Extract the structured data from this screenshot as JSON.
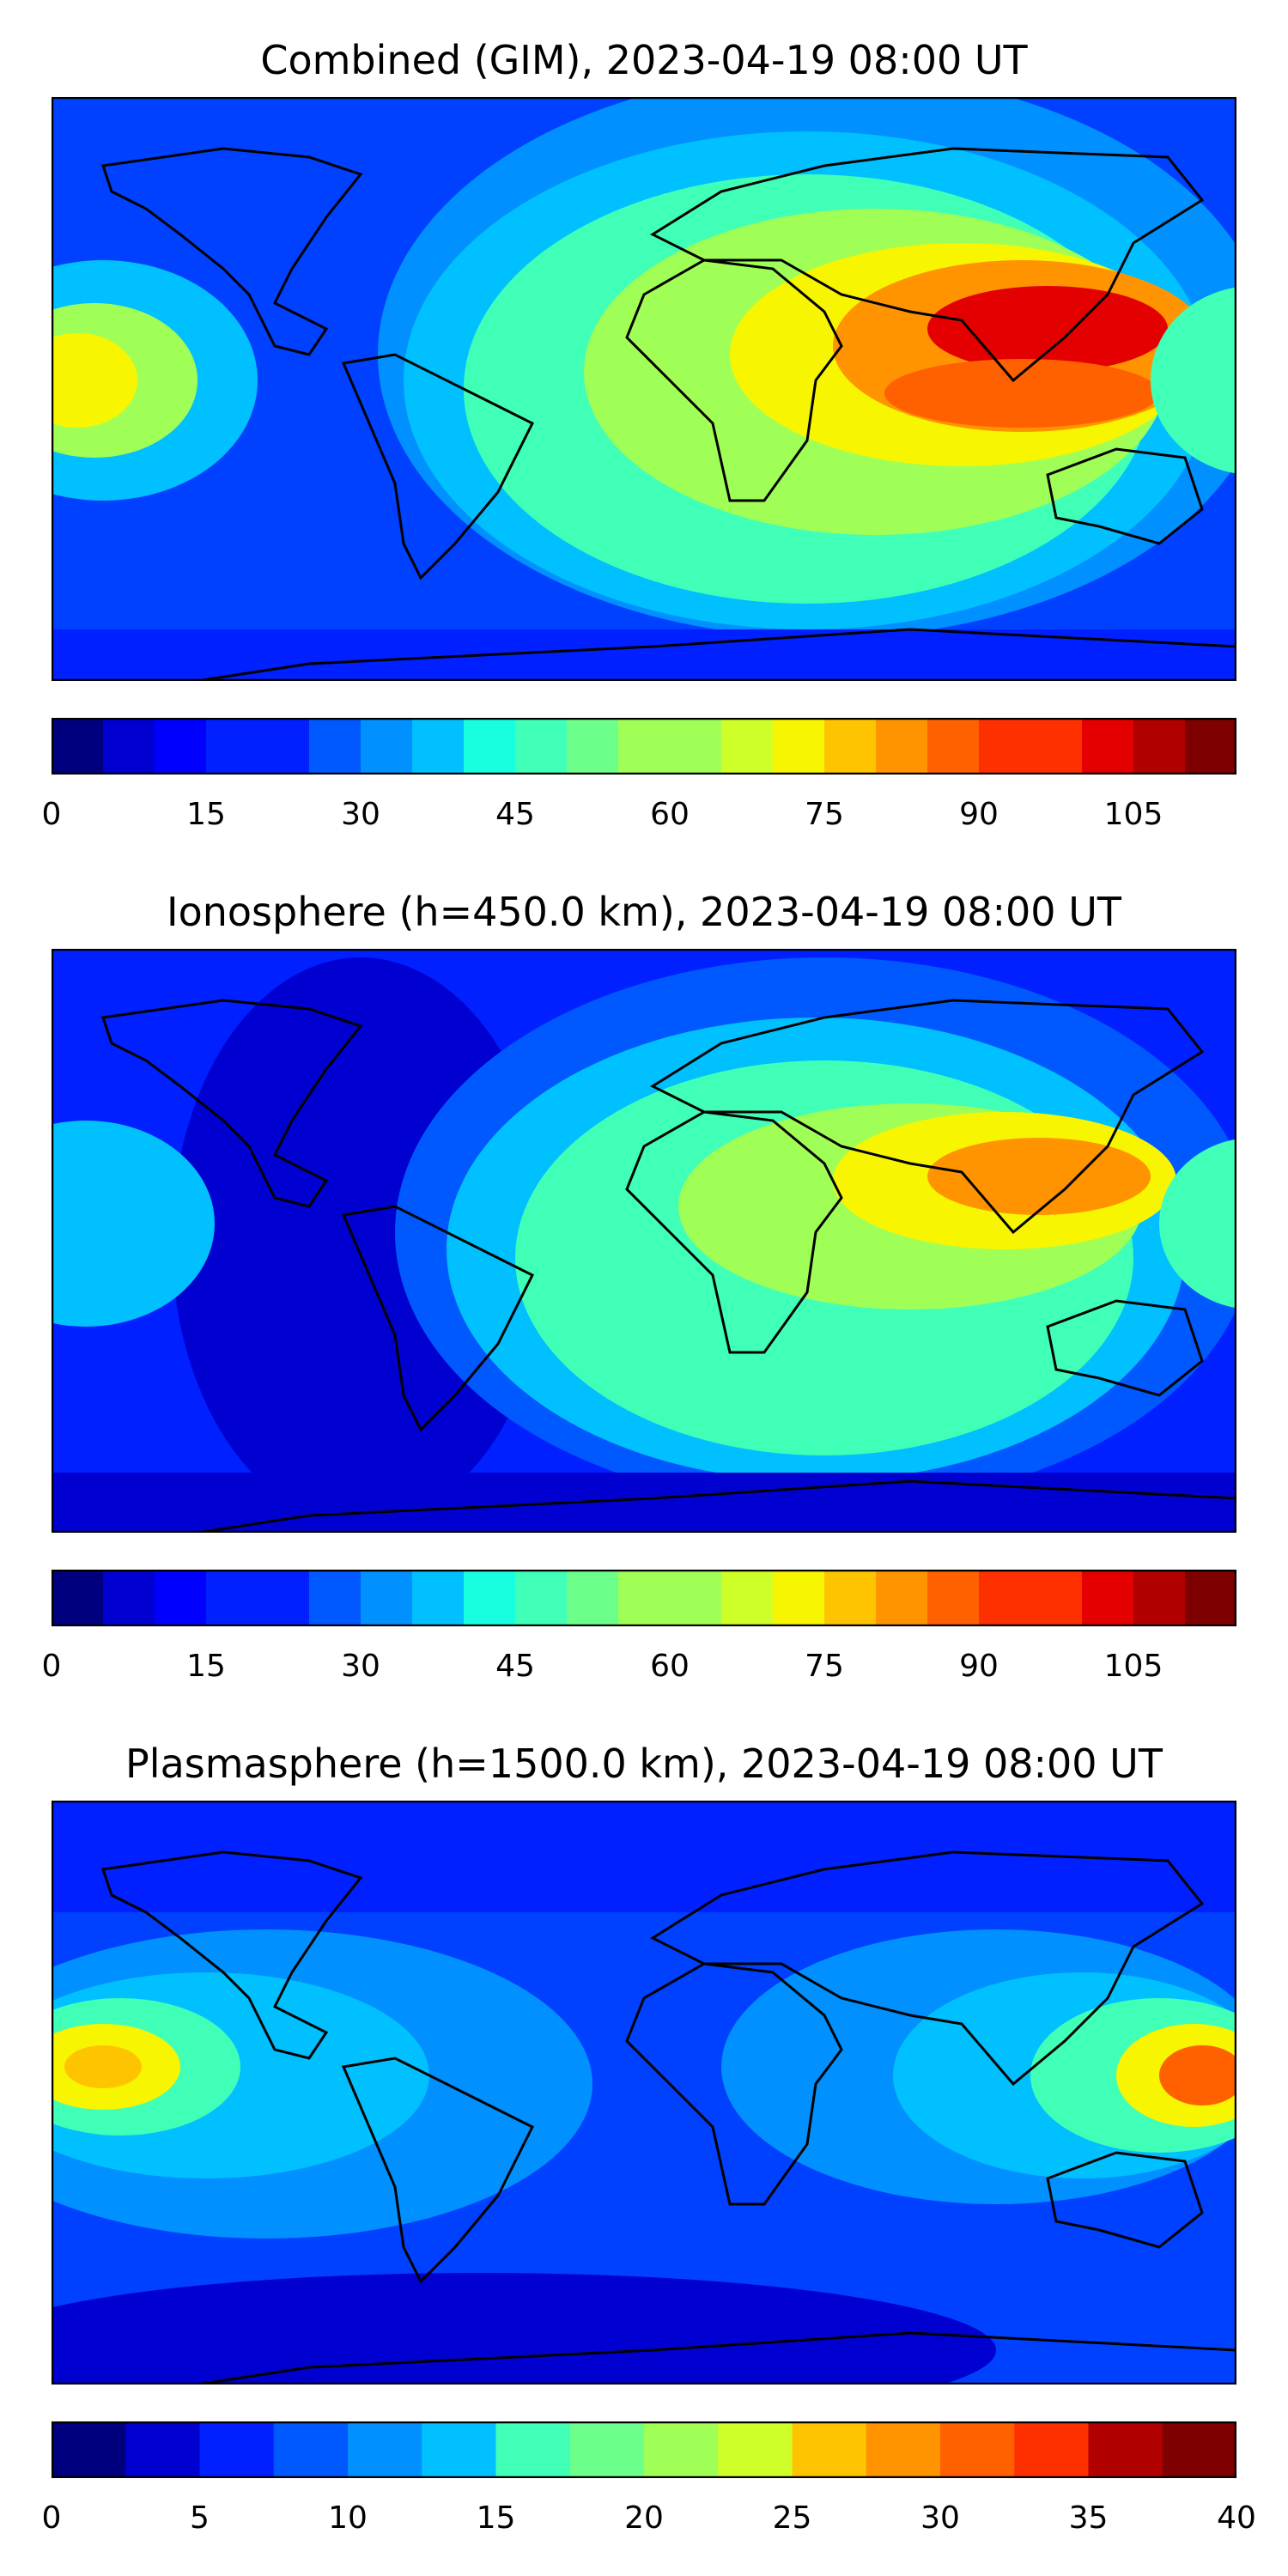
{
  "panels": [
    {
      "title": "Combined (GIM), 2023-04-19 08:00 UT",
      "colorbar": {
        "ticks": [
          "0",
          "15",
          "30",
          "45",
          "60",
          "75",
          "90",
          "105"
        ],
        "min": 0,
        "max": 115,
        "step": 5
      }
    },
    {
      "title": "Ionosphere  (h=450.0 km), 2023-04-19 08:00 UT",
      "colorbar": {
        "ticks": [
          "0",
          "15",
          "30",
          "45",
          "60",
          "75",
          "90",
          "105"
        ],
        "min": 0,
        "max": 115,
        "step": 5
      }
    },
    {
      "title": "Plasmasphere (h=1500.0 km), 2023-04-19 08:00 UT",
      "colorbar": {
        "ticks": [
          "0",
          "5",
          "10",
          "15",
          "20",
          "25",
          "30",
          "35",
          "40"
        ],
        "min": 0,
        "max": 40,
        "step": 2.5
      }
    }
  ],
  "colormap": "jet",
  "colors": {
    "jet": [
      "#00007f",
      "#0000d0",
      "#0000ff",
      "#0020ff",
      "#0058ff",
      "#0090ff",
      "#00c0ff",
      "#17ffe0",
      "#40ffb7",
      "#6cff8a",
      "#a0ff56",
      "#cfff28",
      "#f8f500",
      "#ffc400",
      "#ff9400",
      "#ff6000",
      "#ff3000",
      "#e40000",
      "#b00000",
      "#7f0000"
    ]
  }
}
